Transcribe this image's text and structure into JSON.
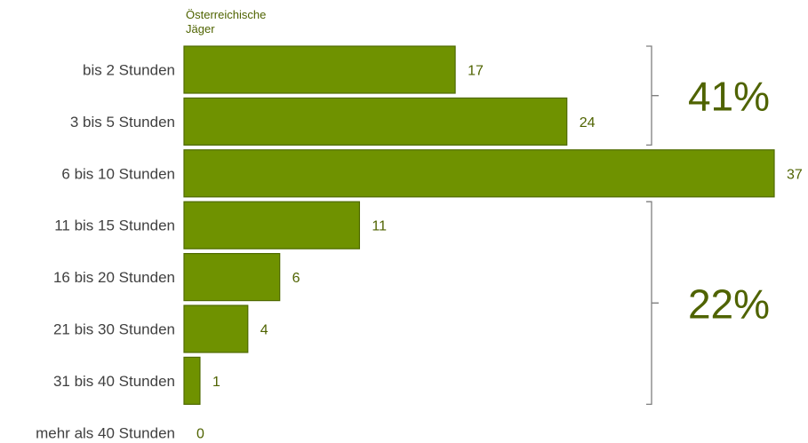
{
  "chart_data": {
    "type": "bar",
    "orientation": "horizontal",
    "series": [
      {
        "name": "Österreichische Jäger",
        "values": [
          17,
          24,
          37,
          11,
          6,
          4,
          1,
          0
        ]
      }
    ],
    "categories": [
      "bis 2 Stunden",
      "3 bis 5 Stunden",
      "6 bis 10 Stunden",
      "11 bis 15 Stunden",
      "16 bis 20 Stunden",
      "21 bis 30 Stunden",
      "31 bis 40 Stunden",
      "mehr als 40 Stunden"
    ],
    "xlim": [
      0,
      37
    ],
    "grid": false,
    "legend": {
      "position": "top-left",
      "lines": [
        "Österreichische",
        "Jäger"
      ]
    },
    "colors": {
      "bar": "#6f9200",
      "bar_border": "#4f6a00",
      "text_accent": "#4f6300",
      "bracket": "#7f7f7f"
    },
    "annotations": [
      {
        "label": "41%",
        "categories": [
          "bis 2 Stunden",
          "3 bis 5 Stunden"
        ]
      },
      {
        "label": "22%",
        "categories": [
          "11 bis 15 Stunden",
          "16 bis 20 Stunden",
          "21 bis 30 Stunden",
          "31 bis 40 Stunden"
        ]
      }
    ]
  }
}
